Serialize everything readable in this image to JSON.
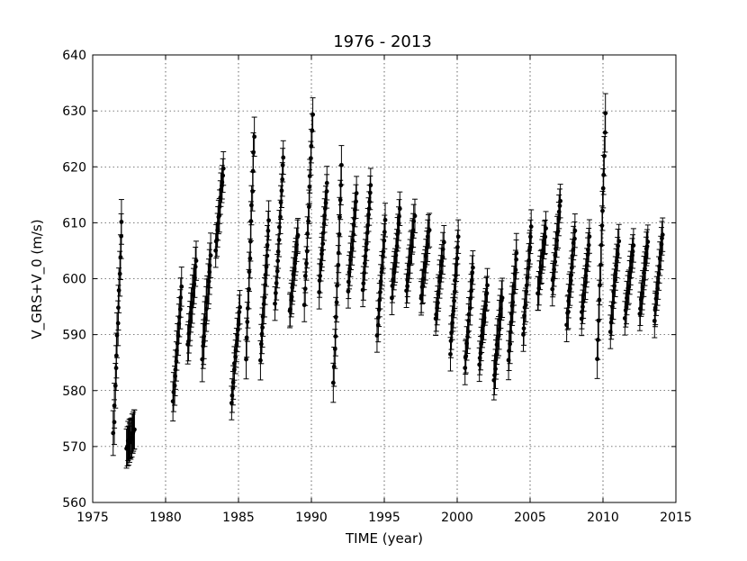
{
  "chart_data": {
    "type": "scatter",
    "title": "1976 - 2013",
    "xlabel": "TIME (year)",
    "ylabel": "V_GRS+V_0 (m/s)",
    "xlim": [
      1975,
      2015
    ],
    "ylim": [
      560,
      640
    ],
    "xticks": [
      1975,
      1980,
      1985,
      1990,
      1995,
      2000,
      2005,
      2010,
      2015
    ],
    "yticks": [
      560,
      570,
      580,
      590,
      600,
      610,
      620,
      630,
      640
    ],
    "grid": true,
    "error_bars": true,
    "seasons": [
      {
        "x": 1976.7,
        "lo": 572,
        "hi": 610,
        "err": 4.0
      },
      {
        "x": 1977.6,
        "lo": 570,
        "hi": 573,
        "err": 3.5
      },
      {
        "x": 1980.8,
        "lo": 578,
        "hi": 598,
        "err": 3.5
      },
      {
        "x": 1981.8,
        "lo": 588,
        "hi": 603,
        "err": 3.5
      },
      {
        "x": 1982.8,
        "lo": 586,
        "hi": 604,
        "err": 4.0
      },
      {
        "x": 1983.7,
        "lo": 605,
        "hi": 620,
        "err": 3.0
      },
      {
        "x": 1984.8,
        "lo": 578,
        "hi": 595,
        "err": 3.0
      },
      {
        "x": 1985.8,
        "lo": 586,
        "hi": 625,
        "err": 3.5
      },
      {
        "x": 1986.8,
        "lo": 586,
        "hi": 610,
        "err": 3.5
      },
      {
        "x": 1987.8,
        "lo": 595,
        "hi": 622,
        "err": 3.0
      },
      {
        "x": 1988.8,
        "lo": 594,
        "hi": 608,
        "err": 3.0
      },
      {
        "x": 1989.8,
        "lo": 595,
        "hi": 629,
        "err": 3.0
      },
      {
        "x": 1990.8,
        "lo": 598,
        "hi": 617,
        "err": 3.0
      },
      {
        "x": 1991.8,
        "lo": 581,
        "hi": 620,
        "err": 3.5
      },
      {
        "x": 1992.8,
        "lo": 598,
        "hi": 615,
        "err": 3.0
      },
      {
        "x": 1993.8,
        "lo": 598,
        "hi": 617,
        "err": 3.0
      },
      {
        "x": 1994.8,
        "lo": 590,
        "hi": 610,
        "err": 3.0
      },
      {
        "x": 1995.8,
        "lo": 597,
        "hi": 612,
        "err": 3.0
      },
      {
        "x": 1996.8,
        "lo": 598,
        "hi": 611,
        "err": 3.0
      },
      {
        "x": 1997.8,
        "lo": 596,
        "hi": 609,
        "err": 3.0
      },
      {
        "x": 1998.8,
        "lo": 593,
        "hi": 606,
        "err": 3.0
      },
      {
        "x": 1999.8,
        "lo": 587,
        "hi": 607,
        "err": 3.0
      },
      {
        "x": 2000.8,
        "lo": 584,
        "hi": 602,
        "err": 3.0
      },
      {
        "x": 2001.8,
        "lo": 585,
        "hi": 599,
        "err": 3.0
      },
      {
        "x": 2002.8,
        "lo": 582,
        "hi": 597,
        "err": 3.5
      },
      {
        "x": 2003.8,
        "lo": 586,
        "hi": 605,
        "err": 3.5
      },
      {
        "x": 2004.8,
        "lo": 590,
        "hi": 609,
        "err": 3.0
      },
      {
        "x": 2005.8,
        "lo": 597,
        "hi": 609,
        "err": 3.0
      },
      {
        "x": 2006.8,
        "lo": 598,
        "hi": 614,
        "err": 3.0
      },
      {
        "x": 2007.8,
        "lo": 592,
        "hi": 609,
        "err": 3.0
      },
      {
        "x": 2008.8,
        "lo": 593,
        "hi": 607,
        "err": 3.0
      },
      {
        "x": 2009.9,
        "lo": 586,
        "hi": 629,
        "err": 3.5
      },
      {
        "x": 2010.8,
        "lo": 591,
        "hi": 607,
        "err": 3.0
      },
      {
        "x": 2011.8,
        "lo": 593,
        "hi": 606,
        "err": 3.0
      },
      {
        "x": 2012.8,
        "lo": 594,
        "hi": 607,
        "err": 3.0
      },
      {
        "x": 2013.8,
        "lo": 593,
        "hi": 608,
        "err": 3.0
      }
    ]
  }
}
